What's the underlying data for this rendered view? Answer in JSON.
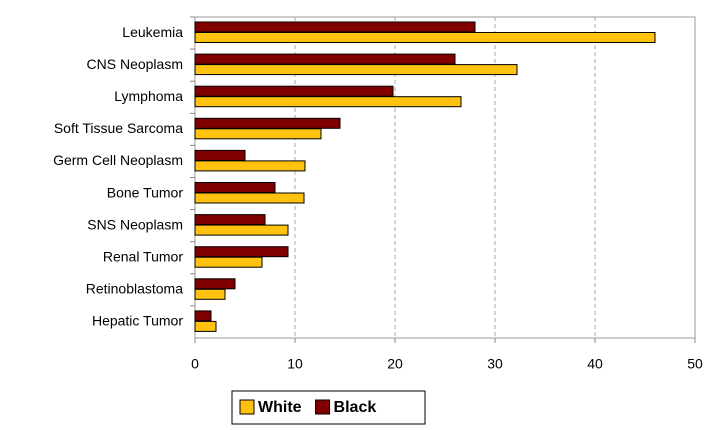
{
  "chart_data": {
    "type": "hbar",
    "categories": [
      "Leukemia",
      "CNS Neoplasm",
      "Lymphoma",
      "Soft Tissue Sarcoma",
      "Germ Cell Neoplasm",
      "Bone Tumor",
      "SNS Neoplasm",
      "Renal Tumor",
      "Retinoblastoma",
      "Hepatic Tumor"
    ],
    "series": [
      {
        "name": "White",
        "color": "#ffc20e",
        "values": [
          46,
          32.2,
          26.6,
          12.6,
          11,
          10.9,
          9.3,
          6.7,
          3,
          2.1
        ]
      },
      {
        "name": "Black",
        "color": "#800000",
        "values": [
          28,
          26,
          19.8,
          14.5,
          5,
          8,
          7,
          9.3,
          4,
          1.6
        ]
      }
    ],
    "xlim": [
      0,
      50
    ],
    "xticks": [
      0,
      10,
      20,
      30,
      40,
      50
    ],
    "grid": true,
    "legend": "bottom"
  }
}
